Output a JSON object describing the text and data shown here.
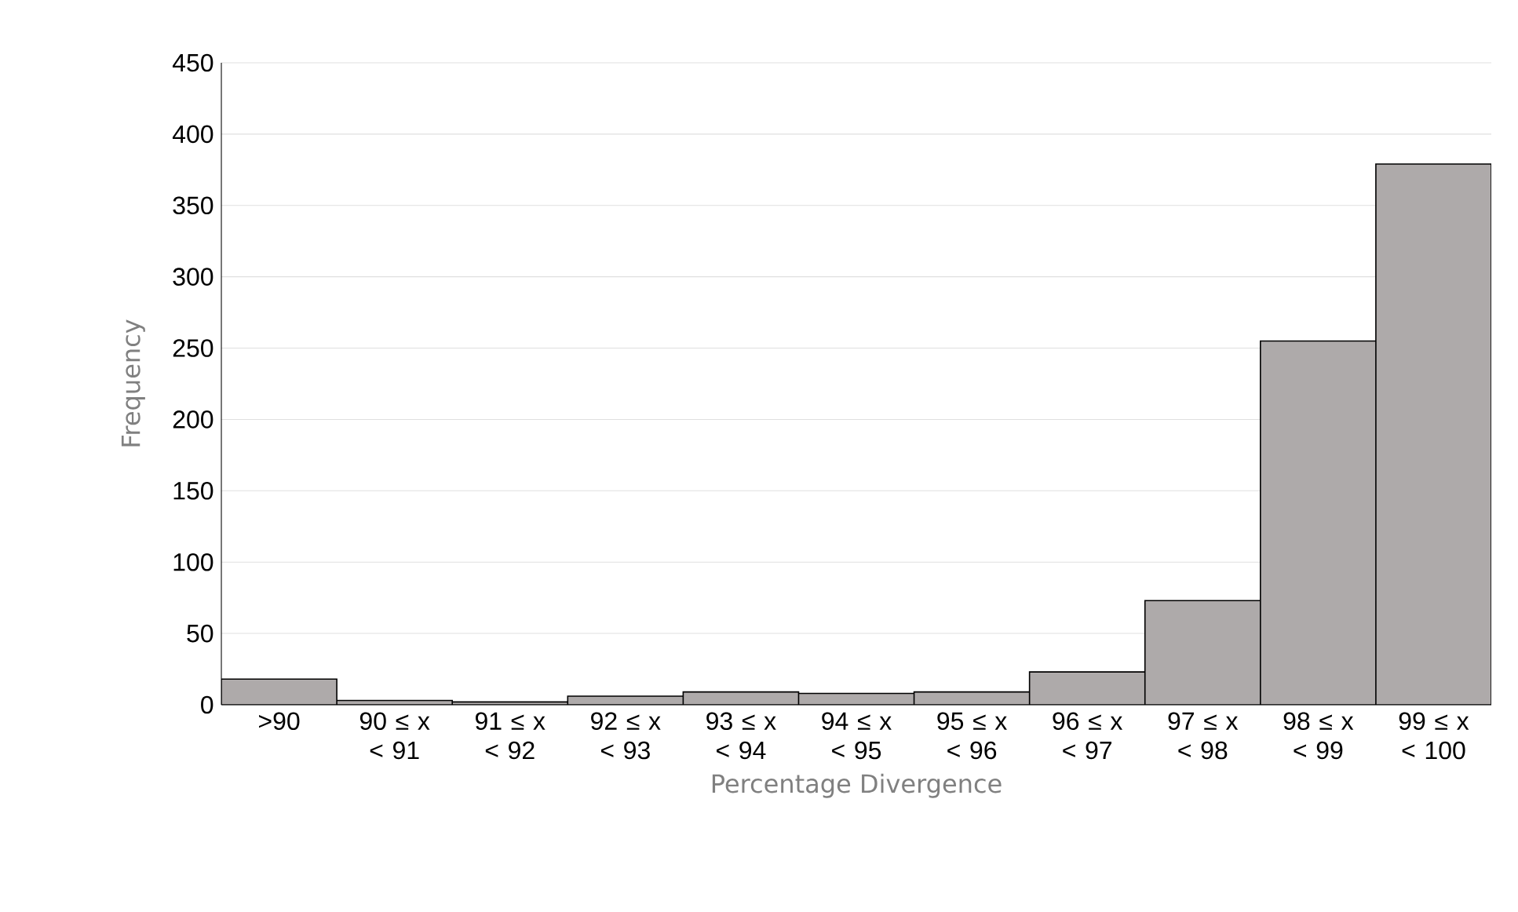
{
  "chart_data": {
    "type": "bar",
    "xlabel": "Percentage Divergence",
    "ylabel": "Frequency",
    "categories": [
      ">90",
      "90 ≤ x < 91",
      "91 ≤ x < 92",
      "92 ≤ x < 93",
      "93 ≤ x < 94",
      "94 ≤ x < 95",
      "95 ≤ x < 96",
      "96 ≤ x < 97",
      "97 ≤ x < 98",
      "98 ≤ x < 99",
      "99 ≤ x < 100"
    ],
    "values": [
      18,
      3,
      2,
      6,
      9,
      8,
      9,
      23,
      73,
      255,
      379
    ],
    "color": "#aeaaaa",
    "ylim": [
      0,
      450
    ],
    "yticks": [
      0,
      50,
      100,
      150,
      200,
      250,
      300,
      350,
      400,
      450
    ],
    "grid": "y"
  }
}
